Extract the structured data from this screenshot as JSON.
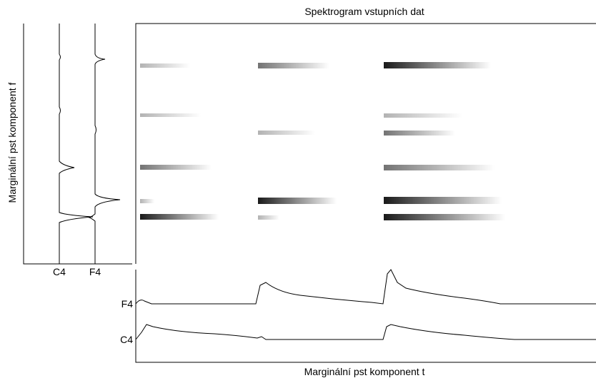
{
  "title": "Spektrogram vstupních dat",
  "y_label": "Marginální pst komponent f",
  "x_label": "Marginální pst komponent t",
  "left_ticks": [
    "C4",
    "F4"
  ],
  "bottom_ticks": [
    "F4",
    "C4"
  ]
}
